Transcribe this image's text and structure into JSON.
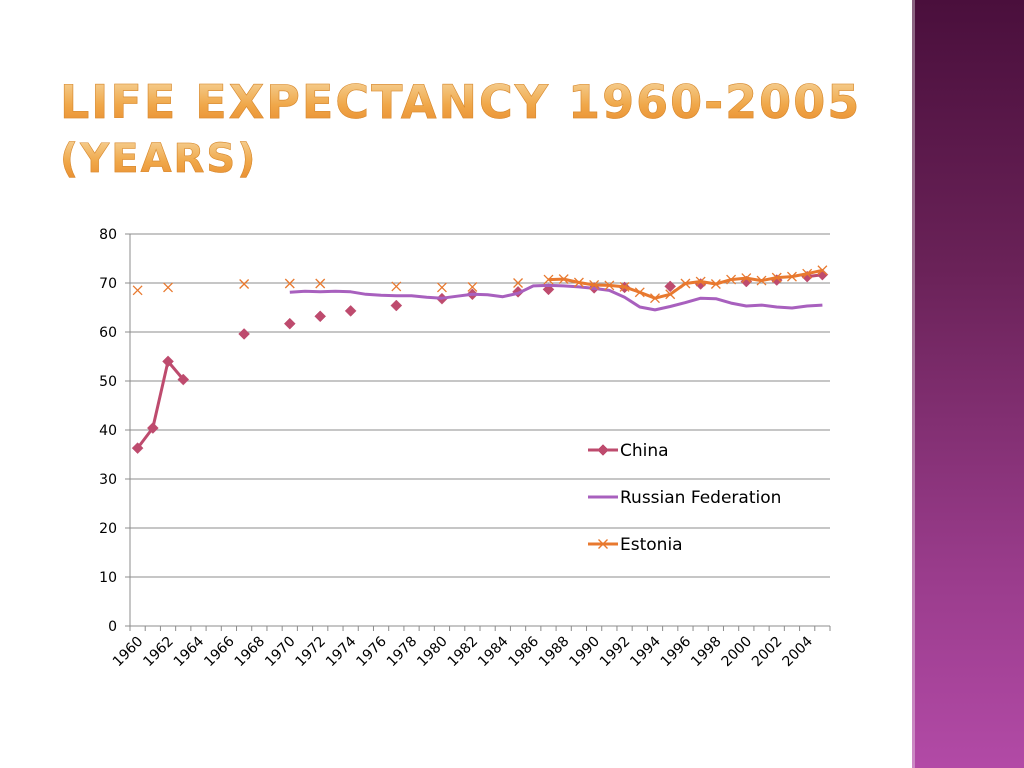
{
  "slide": {
    "title_line1": "Life Expectancy 1960-2005",
    "title_line2": "(years)"
  },
  "colors": {
    "title": "#f0a84a",
    "china": "#be4b6e",
    "russia": "#a860be",
    "estonia": "#e8792f",
    "side_band": "#7a2a6a"
  },
  "chart_data": {
    "type": "line",
    "title": "",
    "xlabel": "",
    "ylabel": "",
    "ylim": [
      0,
      80
    ],
    "yticks": [
      0,
      10,
      20,
      30,
      40,
      50,
      60,
      70,
      80
    ],
    "xlim": [
      1960,
      2005
    ],
    "xticks": [
      1960,
      1962,
      1964,
      1966,
      1968,
      1970,
      1972,
      1974,
      1976,
      1978,
      1980,
      1982,
      1984,
      1986,
      1988,
      1990,
      1992,
      1994,
      1996,
      1998,
      2000,
      2002,
      2004
    ],
    "grid": "horizontal",
    "legend_position": "right",
    "series": [
      {
        "name": "China",
        "marker": "diamond",
        "points": [
          [
            1960,
            36.3
          ],
          [
            1961,
            40.4
          ],
          [
            1962,
            54.0
          ],
          [
            1963,
            50.3
          ],
          [
            1967,
            59.6
          ],
          [
            1970,
            61.7
          ],
          [
            1972,
            63.2
          ],
          [
            1974,
            64.3
          ],
          [
            1977,
            65.4
          ],
          [
            1980,
            66.8
          ],
          [
            1982,
            67.7
          ],
          [
            1985,
            68.2
          ],
          [
            1987,
            68.7
          ],
          [
            1990,
            69.0
          ],
          [
            1992,
            69.1
          ],
          [
            1995,
            69.3
          ],
          [
            1997,
            69.8
          ],
          [
            2000,
            70.3
          ],
          [
            2002,
            70.6
          ],
          [
            2004,
            71.3
          ],
          [
            2005,
            71.7
          ]
        ]
      },
      {
        "name": "Russian Federation",
        "marker": "none",
        "points": [
          [
            1970,
            68.1
          ],
          [
            1971,
            68.3
          ],
          [
            1972,
            68.2
          ],
          [
            1973,
            68.3
          ],
          [
            1974,
            68.2
          ],
          [
            1975,
            67.7
          ],
          [
            1976,
            67.5
          ],
          [
            1977,
            67.4
          ],
          [
            1978,
            67.4
          ],
          [
            1979,
            67.1
          ],
          [
            1980,
            66.9
          ],
          [
            1981,
            67.3
          ],
          [
            1982,
            67.7
          ],
          [
            1983,
            67.6
          ],
          [
            1984,
            67.2
          ],
          [
            1985,
            67.9
          ],
          [
            1986,
            69.4
          ],
          [
            1987,
            69.5
          ],
          [
            1988,
            69.4
          ],
          [
            1989,
            69.2
          ],
          [
            1990,
            68.9
          ],
          [
            1991,
            68.5
          ],
          [
            1992,
            67.1
          ],
          [
            1993,
            65.1
          ],
          [
            1994,
            64.5
          ],
          [
            1995,
            65.2
          ],
          [
            1996,
            66.0
          ],
          [
            1997,
            66.9
          ],
          [
            1998,
            66.8
          ],
          [
            1999,
            65.9
          ],
          [
            2000,
            65.3
          ],
          [
            2001,
            65.5
          ],
          [
            2002,
            65.1
          ],
          [
            2003,
            64.9
          ],
          [
            2004,
            65.3
          ],
          [
            2005,
            65.5
          ]
        ]
      },
      {
        "name": "Estonia",
        "marker": "x",
        "points": [
          [
            1960,
            68.5
          ],
          [
            1962,
            69.1
          ],
          [
            1967,
            69.8
          ],
          [
            1970,
            69.9
          ],
          [
            1972,
            69.9
          ],
          [
            1977,
            69.3
          ],
          [
            1980,
            69.1
          ],
          [
            1982,
            69.2
          ],
          [
            1985,
            70.0
          ],
          [
            1987,
            70.7
          ],
          [
            1988,
            70.8
          ],
          [
            1989,
            70.1
          ],
          [
            1990,
            69.6
          ],
          [
            1991,
            69.5
          ],
          [
            1992,
            69.2
          ],
          [
            1993,
            68.1
          ],
          [
            1994,
            66.9
          ],
          [
            1995,
            67.7
          ],
          [
            1996,
            69.9
          ],
          [
            1997,
            70.3
          ],
          [
            1998,
            69.8
          ],
          [
            1999,
            70.7
          ],
          [
            2000,
            71.0
          ],
          [
            2001,
            70.5
          ],
          [
            2002,
            71.1
          ],
          [
            2003,
            71.3
          ],
          [
            2004,
            71.9
          ],
          [
            2005,
            72.6
          ]
        ]
      }
    ]
  }
}
